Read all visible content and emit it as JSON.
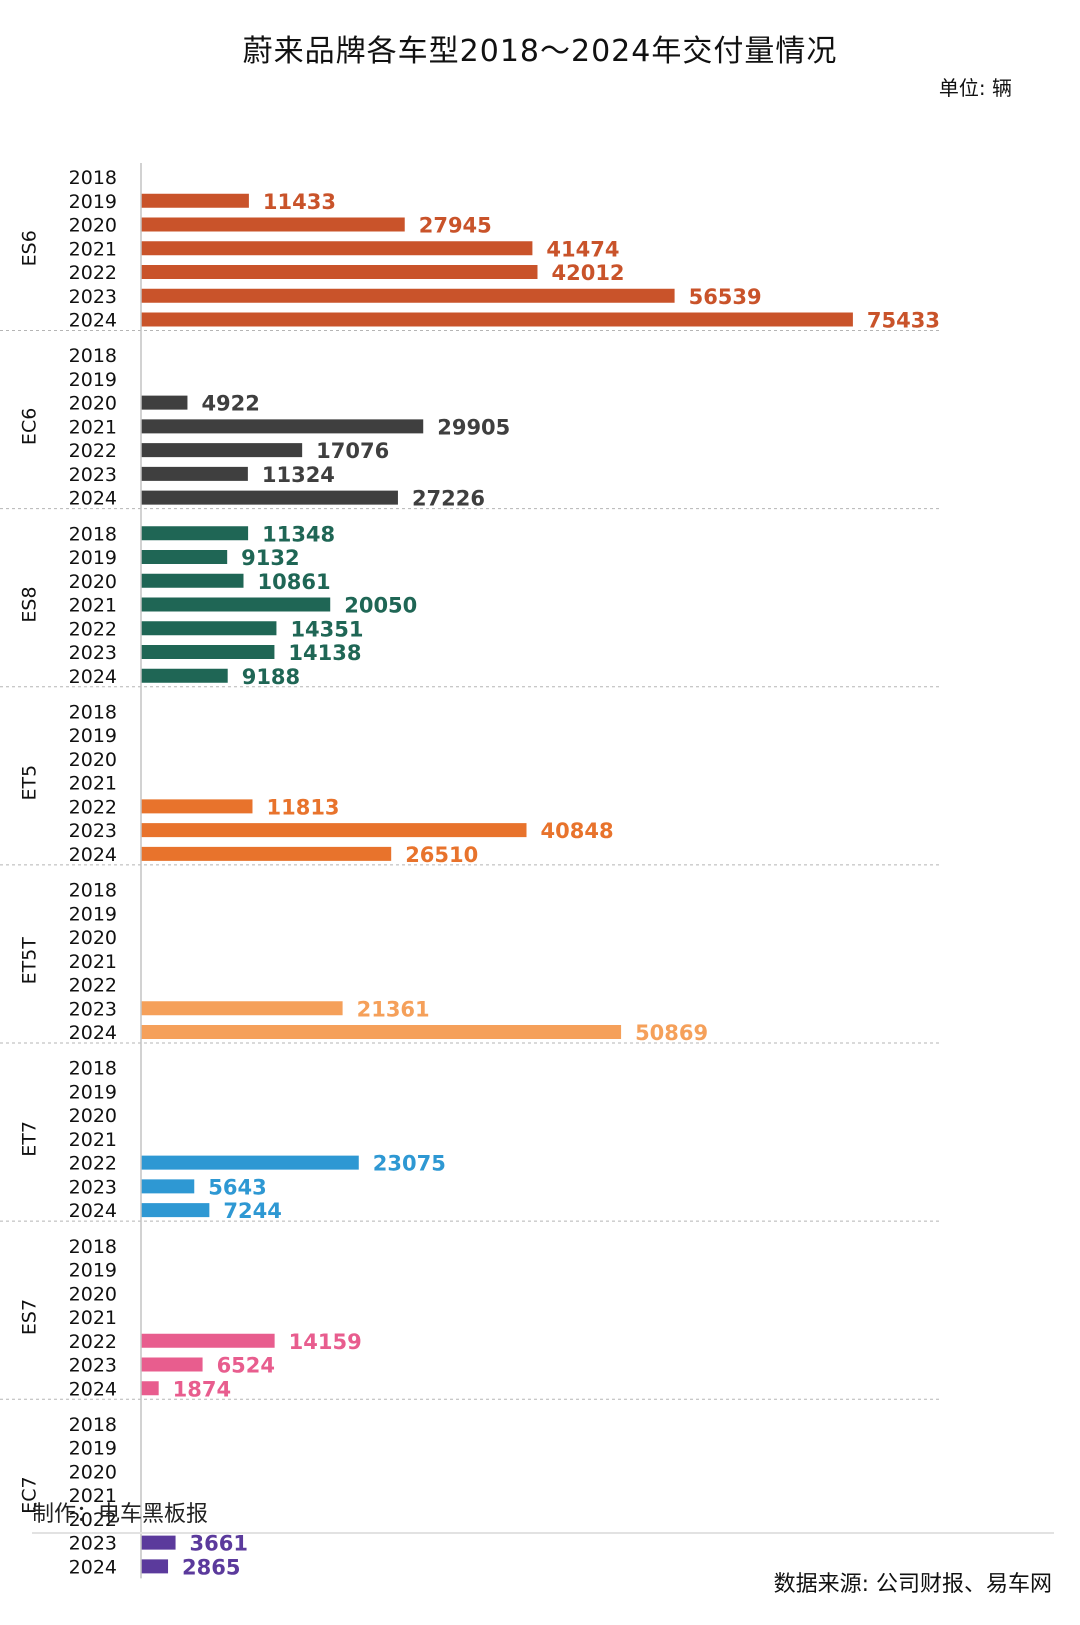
{
  "chart_data": {
    "type": "bar",
    "orientation": "horizontal",
    "title": "蔚来品牌各车型2018～2024年交付量情况",
    "unit_label": "单位: 辆",
    "years": [
      "2018",
      "2019",
      "2020",
      "2021",
      "2022",
      "2023",
      "2024"
    ],
    "xlim": [
      0,
      80000
    ],
    "grid": false,
    "groups": [
      {
        "model": "ES6",
        "color": "#c9532a",
        "values": [
          null,
          11433,
          27945,
          41474,
          42012,
          56539,
          75433
        ]
      },
      {
        "model": "EC6",
        "color": "#3f3f3f",
        "values": [
          null,
          null,
          4922,
          29905,
          17076,
          11324,
          27226
        ]
      },
      {
        "model": "ES8",
        "color": "#1f6655",
        "values": [
          11348,
          9132,
          10861,
          20050,
          14351,
          14138,
          9188
        ]
      },
      {
        "model": "ET5",
        "color": "#e8732c",
        "values": [
          null,
          null,
          null,
          null,
          11813,
          40848,
          26510
        ]
      },
      {
        "model": "ET5T",
        "color": "#f5a05a",
        "values": [
          null,
          null,
          null,
          null,
          null,
          21361,
          50869
        ]
      },
      {
        "model": "ET7",
        "color": "#2e98d3",
        "values": [
          null,
          null,
          null,
          null,
          23075,
          5643,
          7244
        ]
      },
      {
        "model": "ES7",
        "color": "#e85d8e",
        "values": [
          null,
          null,
          null,
          null,
          14159,
          6524,
          1874
        ]
      },
      {
        "model": "EC7",
        "color": "#5b3a9c",
        "values": [
          null,
          null,
          null,
          null,
          null,
          3661,
          2865
        ]
      }
    ]
  },
  "credit": "制作：电车黑板报",
  "source": "数据来源: 公司财报、易车网"
}
